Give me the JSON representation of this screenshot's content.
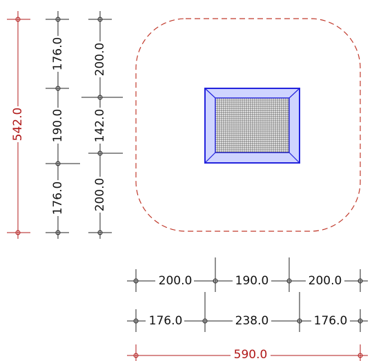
{
  "colors": {
    "dimension_black": "#111111",
    "dimension_red": "#b01818",
    "outline_dashed": "#c0392b",
    "frame_fill": "#cfd4ff",
    "frame_stroke": "#2222dd",
    "mesh": "#222222"
  },
  "dimensions": {
    "vertical_total": {
      "label": "542.0",
      "value": 542.0
    },
    "vertical_left": [
      {
        "label": "176.0",
        "value": 176.0
      },
      {
        "label": "190.0",
        "value": 190.0
      },
      {
        "label": "176.0",
        "value": 176.0
      }
    ],
    "vertical_right": [
      {
        "label": "200.0",
        "value": 200.0
      },
      {
        "label": "142.0",
        "value": 142.0
      },
      {
        "label": "200.0",
        "value": 200.0
      }
    ],
    "horizontal_top": [
      {
        "label": "200.0",
        "value": 200.0
      },
      {
        "label": "190.0",
        "value": 190.0
      },
      {
        "label": "200.0",
        "value": 200.0
      }
    ],
    "horizontal_middle": [
      {
        "label": "176.0",
        "value": 176.0
      },
      {
        "label": "238.0",
        "value": 238.0
      },
      {
        "label": "176.0",
        "value": 176.0
      }
    ],
    "horizontal_total": {
      "label": "590.0",
      "value": 590.0
    }
  }
}
